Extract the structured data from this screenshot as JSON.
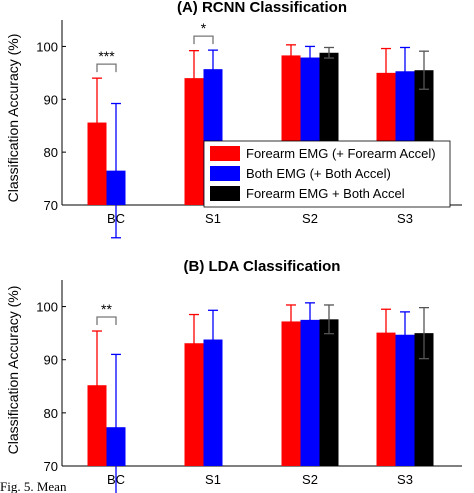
{
  "chart_data": [
    {
      "type": "bar",
      "title": "(A) RCNN Classification",
      "ylabel": "Classification Accuracy (%)",
      "xlabel": "",
      "ylim": [
        70,
        105
      ],
      "yticks": [
        70,
        80,
        90,
        100
      ],
      "categories": [
        "BC",
        "S1",
        "S2",
        "S3"
      ],
      "series": [
        {
          "name": "Forearm EMG (+ Forearm Accel)",
          "color": "#ff0000",
          "values": [
            85.6,
            94.0,
            98.3,
            95.0
          ],
          "errors": [
            8.4,
            5.2,
            2.0,
            4.6
          ]
        },
        {
          "name": "Both EMG (+ Both Accel)",
          "color": "#0000ff",
          "values": [
            76.5,
            95.7,
            97.9,
            95.3
          ],
          "errors": [
            12.7,
            3.6,
            2.1,
            4.5
          ]
        },
        {
          "name": "Forearm EMG + Both Accel",
          "color": "#000000",
          "values": [
            null,
            null,
            98.8,
            95.5
          ],
          "errors": [
            null,
            null,
            1.0,
            3.6
          ]
        }
      ],
      "significance": [
        {
          "category": "BC",
          "label": "***"
        },
        {
          "category": "S1",
          "label": "*"
        }
      ],
      "legend_location": "inside, lower right"
    },
    {
      "type": "bar",
      "title": "(B) LDA Classification",
      "ylabel": "Classification Accuracy (%)",
      "xlabel": "",
      "ylim": [
        70,
        105
      ],
      "yticks": [
        70,
        80,
        90,
        100
      ],
      "categories": [
        "BC",
        "S1",
        "S2",
        "S3"
      ],
      "series": [
        {
          "name": "Forearm EMG (+ Forearm Accel)",
          "color": "#ff0000",
          "values": [
            85.2,
            93.1,
            97.2,
            95.1
          ],
          "errors": [
            10.2,
            5.4,
            3.1,
            4.4
          ]
        },
        {
          "name": "Both EMG (+ Both Accel)",
          "color": "#0000ff",
          "values": [
            77.3,
            93.8,
            97.5,
            94.7
          ],
          "errors": [
            13.7,
            5.5,
            3.2,
            4.3
          ]
        },
        {
          "name": "Forearm EMG + Both Accel",
          "color": "#000000",
          "values": [
            null,
            null,
            97.6,
            95.0
          ],
          "errors": [
            null,
            null,
            2.7,
            4.8
          ]
        }
      ],
      "significance": [
        {
          "category": "BC",
          "label": "**"
        }
      ]
    }
  ],
  "caption_fragment": "Fig. 5. Mean"
}
